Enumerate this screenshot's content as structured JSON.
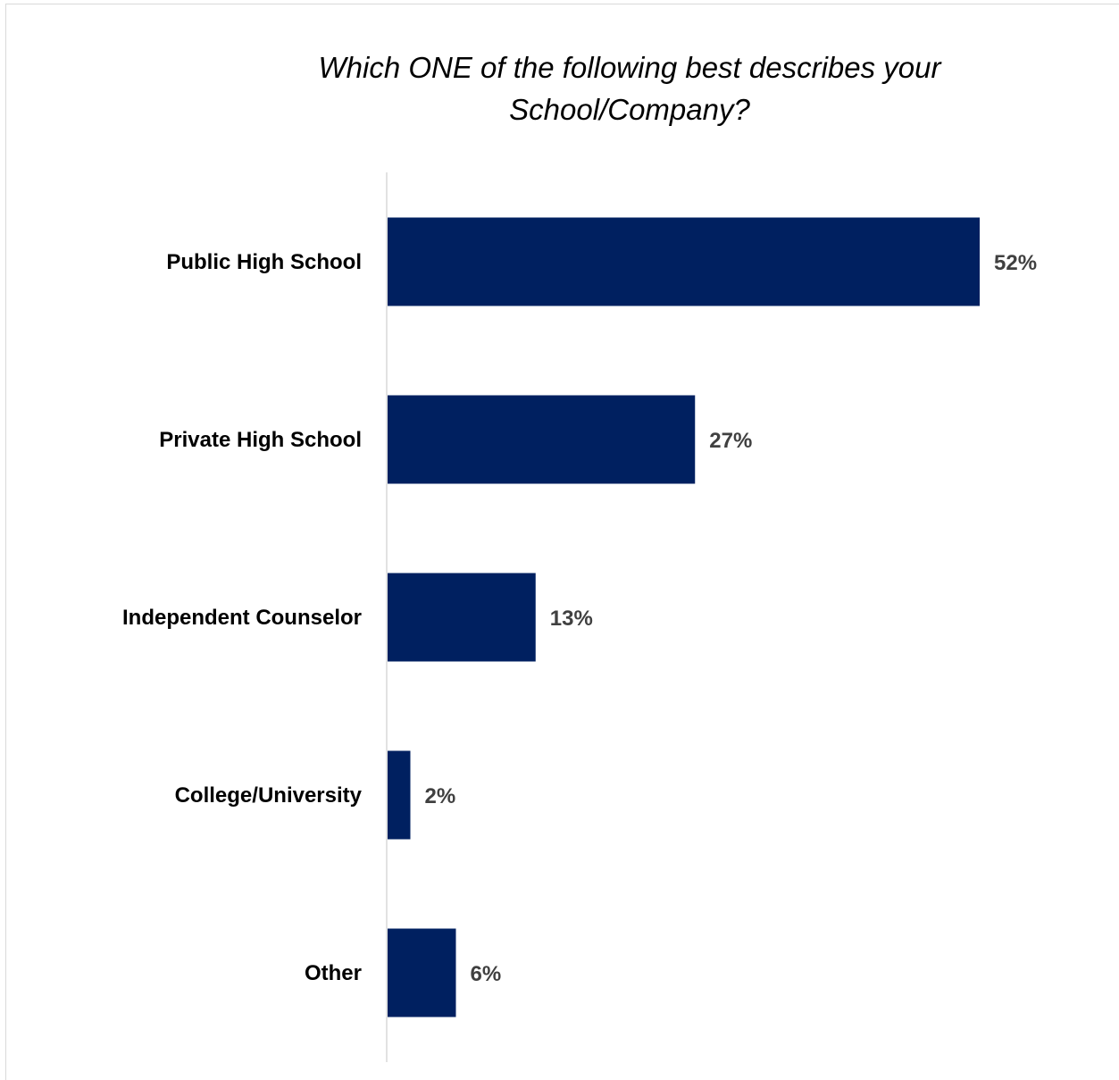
{
  "chart_data": {
    "type": "bar",
    "orientation": "horizontal",
    "title": "Which ONE of the following best describes your School/Company?",
    "categories": [
      "Public High School",
      "Private High School",
      "Independent Counselor",
      "College/University",
      "Other"
    ],
    "values": [
      52,
      27,
      13,
      2,
      6
    ],
    "value_labels": [
      "52%",
      "27%",
      "13%",
      "2%",
      "6%"
    ],
    "unit": "%",
    "xlim": [
      0,
      60
    ],
    "grid": false,
    "legend": "none",
    "bar_color": "#002060"
  }
}
